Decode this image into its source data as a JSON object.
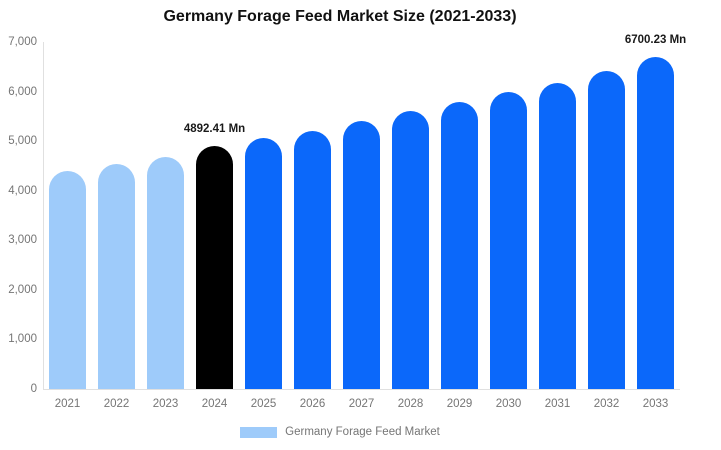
{
  "title": "Germany Forage Feed Market Size (2021-2033)",
  "colors": {
    "light_blue": "#9ecbfa",
    "bright_blue": "#0b68fa",
    "black": "#000000",
    "axis_text": "#757575",
    "axis_line": "#e0e0e0",
    "annotation_text": "#1a1a1a"
  },
  "chart_data": {
    "type": "bar",
    "title": "Germany Forage Feed Market Size (2021-2033)",
    "categories": [
      "2021",
      "2022",
      "2023",
      "2024",
      "2025",
      "2026",
      "2027",
      "2028",
      "2029",
      "2030",
      "2031",
      "2032",
      "2033"
    ],
    "series": [
      {
        "name": "Germany Forage Feed Market",
        "values": [
          4400,
          4530,
          4690,
          4892.41,
          5060,
          5210,
          5400,
          5600,
          5790,
          5990,
          6170,
          6420,
          6700.23
        ]
      }
    ],
    "bar_colors": [
      "#9ecbfa",
      "#9ecbfa",
      "#9ecbfa",
      "#000000",
      "#0b68fa",
      "#0b68fa",
      "#0b68fa",
      "#0b68fa",
      "#0b68fa",
      "#0b68fa",
      "#0b68fa",
      "#0b68fa",
      "#0b68fa"
    ],
    "xlabel": "",
    "ylabel": "",
    "ylim": [
      0,
      7000
    ],
    "y_ticks": [
      "7,000",
      "6,000",
      "5,000",
      "4,000",
      "3,000",
      "2,000",
      "1,000",
      "0"
    ],
    "y_tick_values": [
      7000,
      6000,
      5000,
      4000,
      3000,
      2000,
      1000,
      0
    ],
    "grid": "off",
    "annotations": [
      {
        "category": "2024",
        "text": "4892.41 Mn"
      },
      {
        "category": "2033",
        "text": "6700.23 Mn"
      }
    ],
    "legend": {
      "position": "bottom",
      "swatch_color": "#9ecbfa",
      "label": "Germany Forage Feed Market"
    }
  }
}
